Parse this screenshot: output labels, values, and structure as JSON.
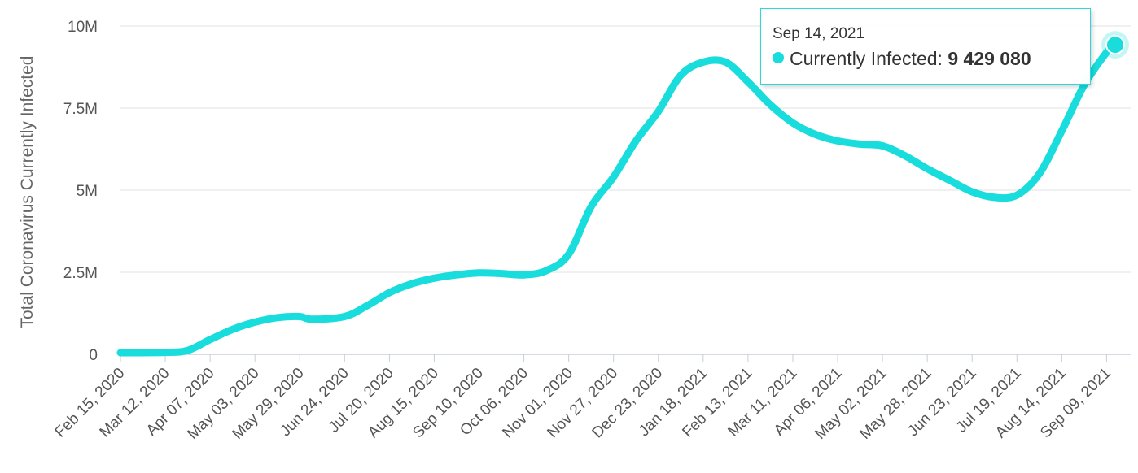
{
  "chart_data": {
    "type": "line",
    "title": "",
    "xlabel": "",
    "ylabel": "Total Coronavirus Currently Infected",
    "ylim": [
      0,
      10000000
    ],
    "y_ticks": [
      0,
      2500000,
      5000000,
      7500000,
      10000000
    ],
    "y_tick_labels": [
      "0",
      "2.5M",
      "5M",
      "7.5M",
      "10M"
    ],
    "x_tick_labels": [
      "Feb 15, 2020",
      "Mar 12, 2020",
      "Apr 07, 2020",
      "May 03, 2020",
      "May 29, 2020",
      "Jun 24, 2020",
      "Jul 20, 2020",
      "Aug 15, 2020",
      "Sep 10, 2020",
      "Oct 06, 2020",
      "Nov 01, 2020",
      "Nov 27, 2020",
      "Dec 23, 2020",
      "Jan 18, 2021",
      "Feb 13, 2021",
      "Mar 11, 2021",
      "Apr 06, 2021",
      "May 02, 2021",
      "May 28, 2021",
      "Jun 23, 2021",
      "Jul 19, 2021",
      "Aug 14, 2021",
      "Sep 09, 2021"
    ],
    "grid": true,
    "color": "#19dcdc",
    "series": [
      {
        "values": [
          [
            "Feb 15, 2020",
            50000
          ],
          [
            "Mar 12, 2020",
            60000
          ],
          [
            "Mar 25, 2020",
            120000
          ],
          [
            "Apr 07, 2020",
            450000
          ],
          [
            "Apr 20, 2020",
            760000
          ],
          [
            "May 03, 2020",
            980000
          ],
          [
            "May 16, 2020",
            1120000
          ],
          [
            "May 29, 2020",
            1150000
          ],
          [
            "Jun 05, 2020",
            1070000
          ],
          [
            "Jun 24, 2020",
            1150000
          ],
          [
            "Jul 07, 2020",
            1480000
          ],
          [
            "Jul 20, 2020",
            1880000
          ],
          [
            "Aug 02, 2020",
            2150000
          ],
          [
            "Aug 15, 2020",
            2320000
          ],
          [
            "Aug 28, 2020",
            2420000
          ],
          [
            "Sep 10, 2020",
            2480000
          ],
          [
            "Sep 23, 2020",
            2460000
          ],
          [
            "Oct 06, 2020",
            2420000
          ],
          [
            "Oct 19, 2020",
            2550000
          ],
          [
            "Nov 01, 2020",
            3050000
          ],
          [
            "Nov 14, 2020",
            4500000
          ],
          [
            "Nov 27, 2020",
            5400000
          ],
          [
            "Dec 10, 2020",
            6500000
          ],
          [
            "Dec 23, 2020",
            7400000
          ],
          [
            "Jan 05, 2021",
            8500000
          ],
          [
            "Jan 18, 2021",
            8900000
          ],
          [
            "Jan 31, 2021",
            8900000
          ],
          [
            "Feb 13, 2021",
            8300000
          ],
          [
            "Feb 26, 2021",
            7600000
          ],
          [
            "Mar 11, 2021",
            7050000
          ],
          [
            "Mar 24, 2021",
            6700000
          ],
          [
            "Apr 06, 2021",
            6500000
          ],
          [
            "Apr 19, 2021",
            6400000
          ],
          [
            "May 02, 2021",
            6350000
          ],
          [
            "May 15, 2021",
            6050000
          ],
          [
            "May 28, 2021",
            5650000
          ],
          [
            "Jun 10, 2021",
            5300000
          ],
          [
            "Jun 23, 2021",
            4950000
          ],
          [
            "Jul 06, 2021",
            4780000
          ],
          [
            "Jul 19, 2021",
            4850000
          ],
          [
            "Aug 01, 2021",
            5500000
          ],
          [
            "Aug 14, 2021",
            6800000
          ],
          [
            "Aug 27, 2021",
            8200000
          ],
          [
            "Sep 09, 2021",
            9200000
          ],
          [
            "Sep 14, 2021",
            9429080
          ]
        ]
      }
    ],
    "tooltip": {
      "date": "Sep 14, 2021",
      "label": "Currently Infected: ",
      "value": "9 429 080"
    }
  }
}
